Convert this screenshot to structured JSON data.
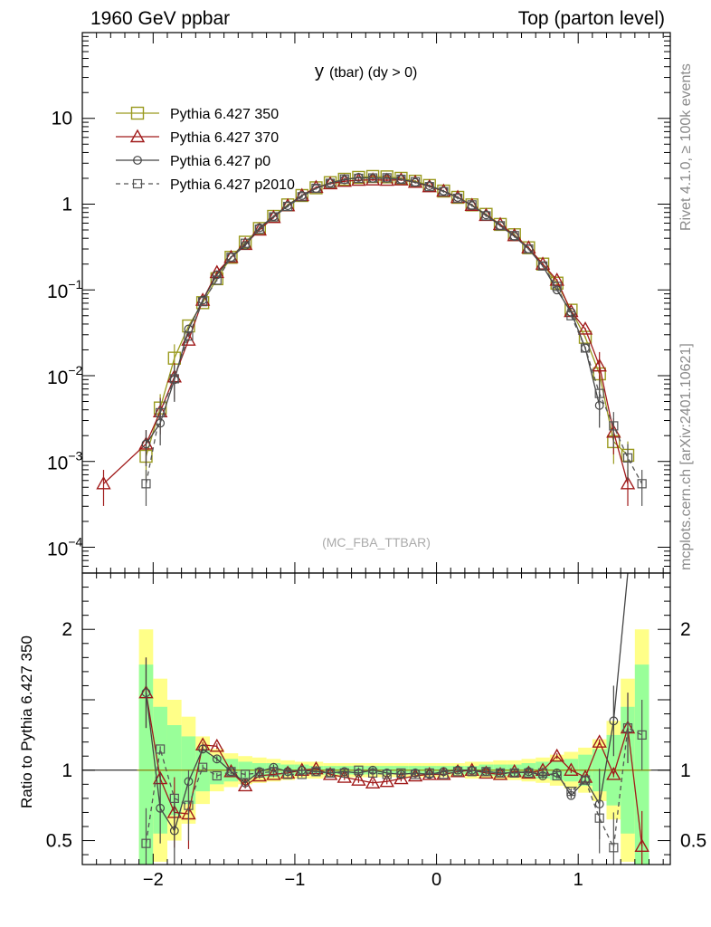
{
  "header": {
    "left": "1960 GeV ppbar",
    "right": "Top (parton level)"
  },
  "side_labels": {
    "rivet": "Rivet 4.1.0, ≥ 100k events",
    "mcplots": "mcplots.cern.ch [arXiv:2401.10621]"
  },
  "colors": {
    "s350": "#9a9a1e",
    "s370": "#a01a1a",
    "sp0": "#444444",
    "sp2010": "#555555",
    "band_yellow": "#ffff88",
    "band_green": "#99ff99"
  },
  "chart_data": [
    {
      "type": "line",
      "scale": "log",
      "title": "y (tbar) (dy > 0)",
      "title_main": "y",
      "title_rest": "(tbar) (dy > 0)",
      "watermark": "(MC_FBA_TTBAR)",
      "xlim": [
        -2.5,
        1.65
      ],
      "ylim": [
        5e-05,
        100
      ],
      "yticks": [
        {
          "v": 10,
          "m": "10",
          "e": ""
        },
        {
          "v": 1,
          "m": "1",
          "e": ""
        },
        {
          "v": 0.1,
          "m": "10",
          "e": "−1"
        },
        {
          "v": 0.01,
          "m": "10",
          "e": "−2"
        },
        {
          "v": 0.001,
          "m": "10",
          "e": "−3"
        },
        {
          "v": 0.0001,
          "m": "10",
          "e": "−4"
        }
      ],
      "legend": [
        "Pythia 6.427 350",
        "Pythia 6.427 370",
        "Pythia 6.427 p0",
        "Pythia 6.427 p2010"
      ],
      "x": [
        -2.35,
        -2.05,
        -1.95,
        -1.85,
        -1.75,
        -1.65,
        -1.55,
        -1.45,
        -1.35,
        -1.25,
        -1.15,
        -1.05,
        -0.95,
        -0.85,
        -0.75,
        -0.65,
        -0.55,
        -0.45,
        -0.35,
        -0.25,
        -0.15,
        -0.05,
        0.05,
        0.15,
        0.25,
        0.35,
        0.45,
        0.55,
        0.65,
        0.75,
        0.85,
        0.95,
        1.05,
        1.15,
        1.25,
        1.35,
        1.45,
        1.55
      ],
      "series": [
        {
          "name": "Pythia 6.427 350",
          "marker": "square-open",
          "dash": false,
          "values": [
            null,
            0.00115,
            0.0042,
            0.016,
            0.038,
            0.071,
            0.135,
            0.24,
            0.36,
            0.52,
            0.72,
            0.98,
            1.26,
            1.55,
            1.78,
            1.95,
            2.05,
            2.1,
            2.08,
            2.0,
            1.85,
            1.65,
            1.42,
            1.2,
            0.98,
            0.76,
            0.58,
            0.44,
            0.31,
            0.2,
            0.12,
            0.058,
            0.028,
            0.0105,
            0.0017,
            0.00118,
            null,
            null
          ]
        },
        {
          "name": "Pythia 6.427 370",
          "marker": "triangle-open",
          "dash": false,
          "values": [
            0.00055,
            0.0016,
            0.0038,
            0.0097,
            0.026,
            0.076,
            0.16,
            0.24,
            0.34,
            0.5,
            0.7,
            0.96,
            1.26,
            1.57,
            1.73,
            1.85,
            1.9,
            1.92,
            1.9,
            1.92,
            1.8,
            1.6,
            1.42,
            1.2,
            0.97,
            0.74,
            0.58,
            0.43,
            0.31,
            0.2,
            0.13,
            0.056,
            0.035,
            0.013,
            0.0022,
            0.00055,
            null,
            null
          ]
        },
        {
          "name": "Pythia 6.427 p0",
          "marker": "circle-open",
          "dash": false,
          "values": [
            null,
            0.0016,
            0.0028,
            0.009,
            0.035,
            0.076,
            0.15,
            0.24,
            0.33,
            0.53,
            0.72,
            0.96,
            1.26,
            1.52,
            1.77,
            1.92,
            2.05,
            2.0,
            2.0,
            1.95,
            1.79,
            1.64,
            1.42,
            1.2,
            0.96,
            0.75,
            0.56,
            0.42,
            0.3,
            0.19,
            0.1,
            0.055,
            0.021,
            0.0045,
            null,
            null,
            null,
            null
          ]
        },
        {
          "name": "Pythia 6.427 p2010",
          "marker": "square-small",
          "dash": true,
          "values": [
            null,
            0.00055,
            0.0037,
            0.0092,
            0.029,
            0.073,
            0.13,
            0.24,
            0.35,
            0.51,
            0.71,
            0.94,
            1.22,
            1.53,
            1.75,
            1.96,
            2.0,
            2.02,
            2.03,
            1.95,
            1.82,
            1.6,
            1.4,
            1.17,
            0.98,
            0.73,
            0.56,
            0.43,
            0.3,
            0.19,
            0.11,
            0.05,
            0.021,
            0.0062,
            0.0026,
            0.0011,
            0.00055,
            null
          ]
        }
      ]
    },
    {
      "type": "line",
      "ylabel": "Ratio to Pythia 6.427 350",
      "xlim": [
        -2.5,
        1.65
      ],
      "ylim": [
        0.33,
        2.4
      ],
      "xticks": [
        {
          "v": -2,
          "t": "−2"
        },
        {
          "v": -1,
          "t": "−1"
        },
        {
          "v": 0,
          "t": "0"
        },
        {
          "v": 1,
          "t": "1"
        }
      ],
      "yticks": [
        {
          "v": 2,
          "t": "2"
        },
        {
          "v": 1,
          "t": "1"
        },
        {
          "v": 0.5,
          "t": "0.5"
        }
      ],
      "x": [
        -2.05,
        -1.95,
        -1.85,
        -1.75,
        -1.65,
        -1.55,
        -1.45,
        -1.35,
        -1.25,
        -1.15,
        -1.05,
        -0.95,
        -0.85,
        -0.75,
        -0.65,
        -0.55,
        -0.45,
        -0.35,
        -0.25,
        -0.15,
        -0.05,
        0.05,
        0.15,
        0.25,
        0.35,
        0.45,
        0.55,
        0.65,
        0.75,
        0.85,
        0.95,
        1.05,
        1.15,
        1.25,
        1.35,
        1.45
      ],
      "band_yellow": [
        1.0,
        0.65,
        0.5,
        0.38,
        0.24,
        0.15,
        0.12,
        0.1,
        0.09,
        0.08,
        0.07,
        0.06,
        0.06,
        0.05,
        0.05,
        0.05,
        0.05,
        0.05,
        0.05,
        0.05,
        0.05,
        0.05,
        0.05,
        0.06,
        0.06,
        0.07,
        0.07,
        0.08,
        0.09,
        0.11,
        0.13,
        0.16,
        0.22,
        0.35,
        0.65,
        1.0
      ],
      "band_green": [
        0.75,
        0.45,
        0.32,
        0.24,
        0.15,
        0.1,
        0.08,
        0.06,
        0.05,
        0.05,
        0.04,
        0.04,
        0.03,
        0.03,
        0.03,
        0.03,
        0.03,
        0.03,
        0.03,
        0.03,
        0.03,
        0.03,
        0.03,
        0.03,
        0.04,
        0.04,
        0.04,
        0.05,
        0.06,
        0.07,
        0.08,
        0.11,
        0.15,
        0.25,
        0.45,
        0.75
      ],
      "series": [
        {
          "name": "Pythia 6.427 370",
          "values": [
            1.55,
            0.94,
            0.7,
            0.69,
            1.18,
            1.17,
            0.99,
            0.89,
            0.96,
            0.97,
            0.98,
            1.0,
            1.01,
            0.97,
            0.95,
            0.93,
            0.91,
            0.92,
            0.94,
            0.96,
            0.97,
            0.97,
            0.99,
            1.0,
            0.98,
            0.97,
            0.99,
            0.98,
            1.0,
            1.1,
            1.0,
            0.95,
            1.2,
            0.97,
            1.3,
            0.46
          ]
        },
        {
          "name": "Pythia 6.427 p0",
          "values": [
            1.55,
            0.73,
            0.57,
            0.92,
            1.15,
            1.08,
            0.99,
            0.91,
            0.99,
            1.02,
            0.99,
            1.0,
            0.99,
            0.98,
            0.99,
            0.98,
            1.0,
            0.98,
            0.97,
            0.98,
            0.97,
            0.99,
            1.0,
            1.0,
            0.99,
            0.98,
            0.98,
            0.99,
            0.96,
            0.98,
            0.82,
            0.93,
            0.76,
            1.35,
            2.5,
            null
          ]
        },
        {
          "name": "Pythia 6.427 p2010",
          "values": [
            0.48,
            1.15,
            0.8,
            0.75,
            1.02,
            0.96,
            0.99,
            0.97,
            0.98,
            0.99,
            0.97,
            0.97,
            0.99,
            0.98,
            0.98,
            1.0,
            0.98,
            0.97,
            0.98,
            0.97,
            0.98,
            0.97,
            0.99,
            0.99,
            0.99,
            0.98,
            0.98,
            0.98,
            0.98,
            0.96,
            0.85,
            0.93,
            0.66,
            0.45,
            1.3,
            1.25
          ]
        }
      ]
    }
  ]
}
